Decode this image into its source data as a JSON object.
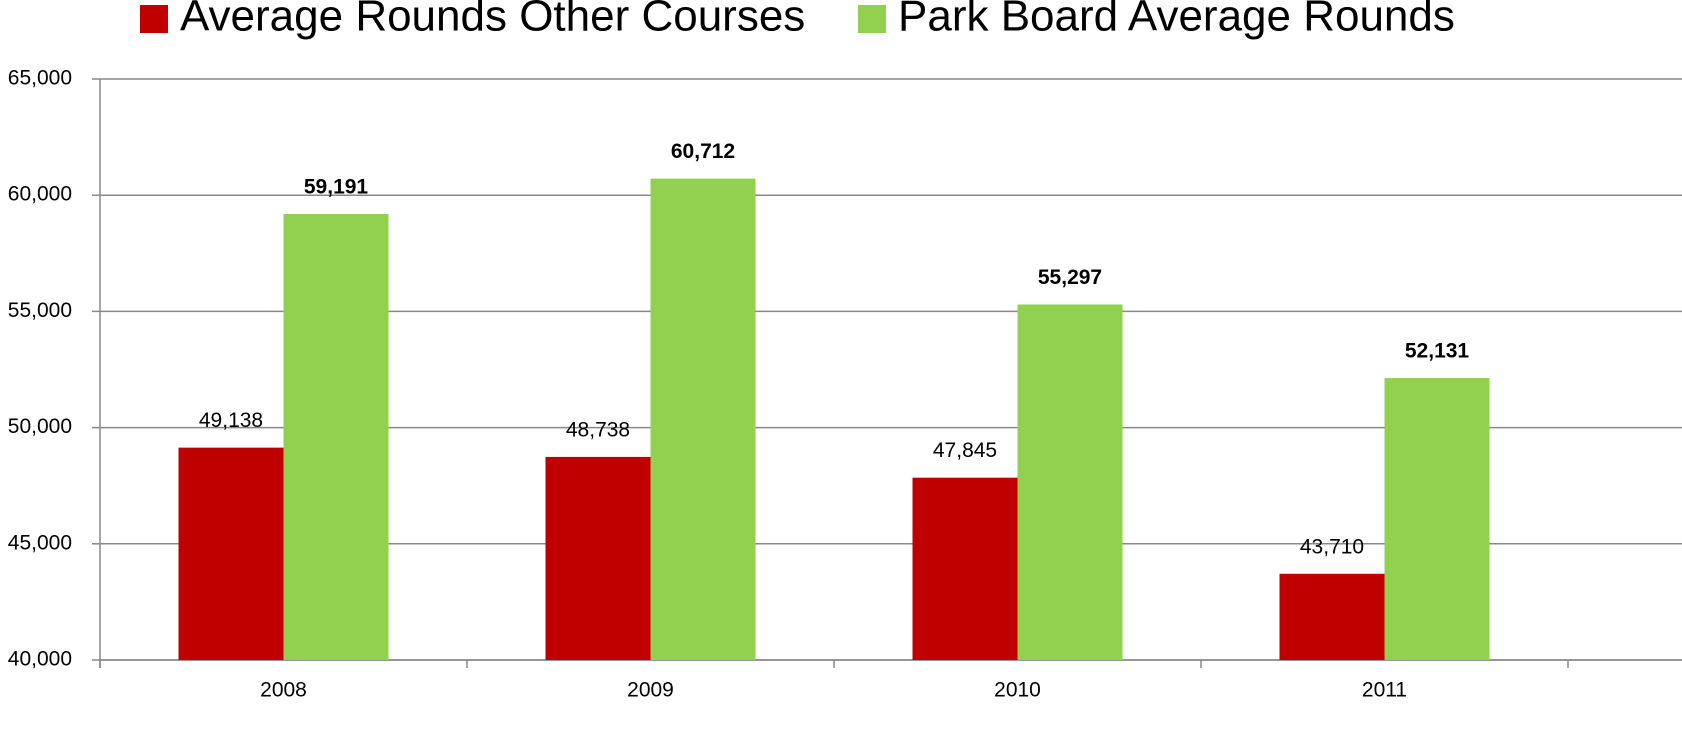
{
  "chart_data": {
    "type": "bar",
    "categories": [
      "2008",
      "2009",
      "2010",
      "2011"
    ],
    "series": [
      {
        "name": "Average Rounds Other Courses",
        "color": "#c00000",
        "values": [
          49138,
          48738,
          47845,
          43710
        ],
        "value_labels": [
          "49,138",
          "48,738",
          "47,845",
          "43,710"
        ]
      },
      {
        "name": "Park Board Average Rounds",
        "color": "#92d050",
        "values": [
          59191,
          60712,
          55297,
          52131
        ],
        "value_labels": [
          "59,191",
          "60,712",
          "55,297",
          "52,131"
        ]
      }
    ],
    "ylim": [
      40000,
      65000
    ],
    "yticks": [
      {
        "value": 40000,
        "label": "40,000"
      },
      {
        "value": 45000,
        "label": "45,000"
      },
      {
        "value": 50000,
        "label": "50,000"
      },
      {
        "value": 55000,
        "label": "55,000"
      },
      {
        "value": 60000,
        "label": "60,000"
      },
      {
        "value": 65000,
        "label": "65,000"
      }
    ],
    "grid": true,
    "legend": "top"
  }
}
